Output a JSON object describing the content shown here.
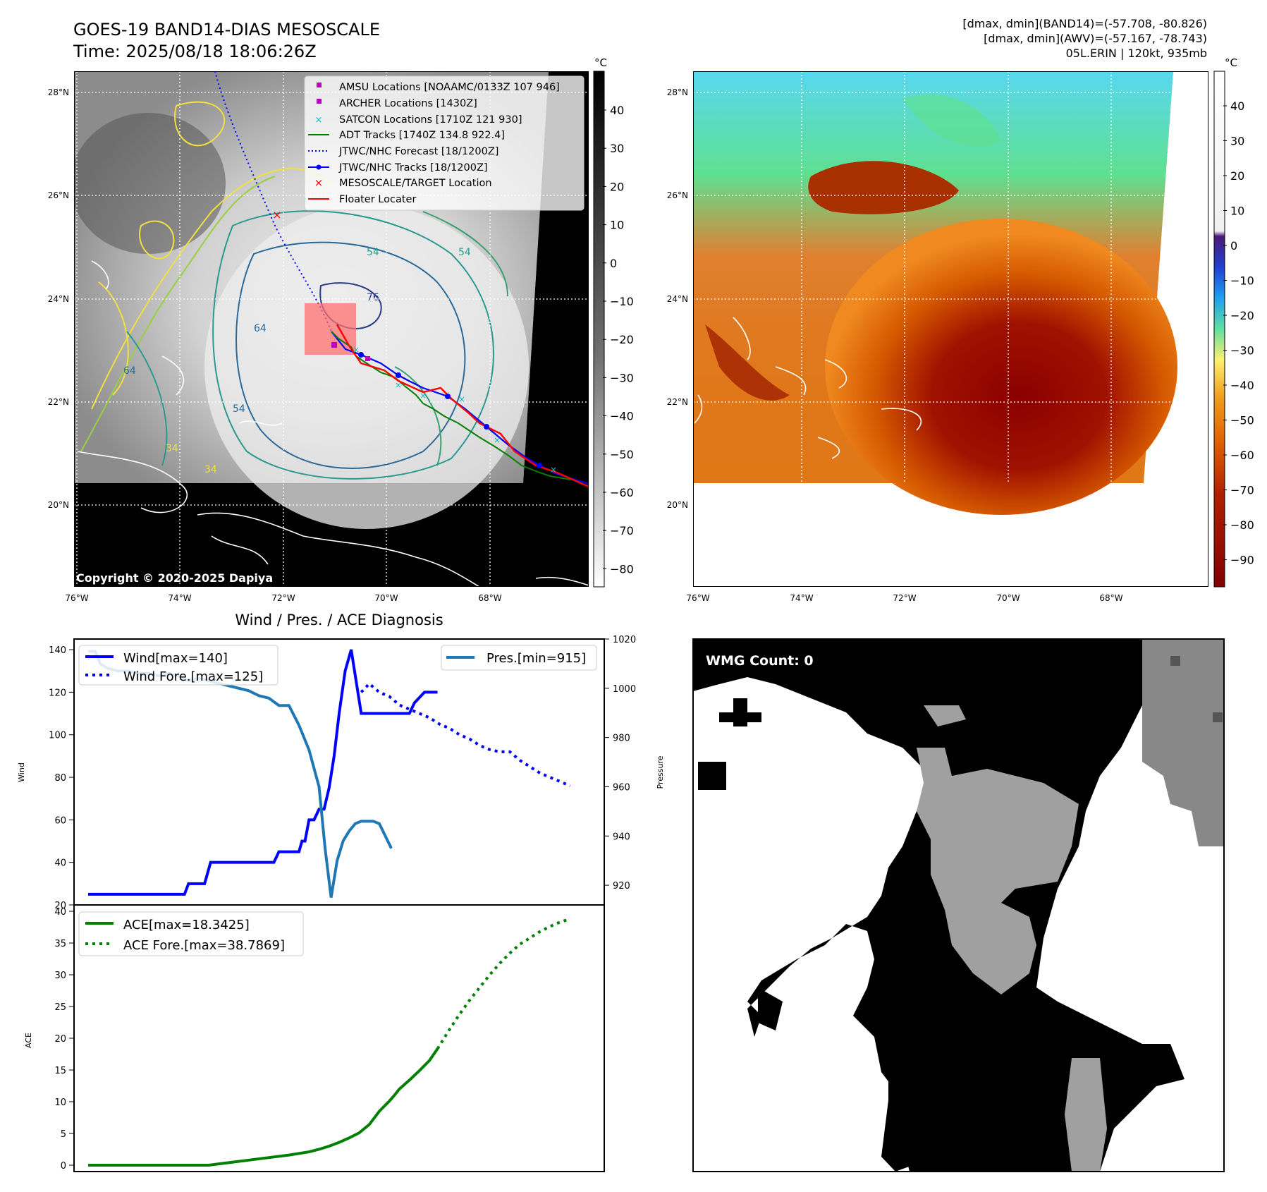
{
  "header": {
    "title": "GOES-19 BAND14-DIAS MESOSCALE",
    "time": "Time: 2025/08/18 18:06:26Z",
    "stats_band14": "[dmax, dmin](BAND14)=(-57.708, -80.826)",
    "stats_awv": "[dmax, dmin](AWV)=(-57.167, -78.743)",
    "storm": "05L.ERIN | 120kt, 935mb"
  },
  "map": {
    "lat_ticks": [
      "28°N",
      "26°N",
      "24°N",
      "22°N",
      "20°N"
    ],
    "lon_ticks": [
      "76°W",
      "74°W",
      "72°W",
      "70°W",
      "68°W"
    ],
    "copyright": "Copyright © 2020-2025 Dapiya",
    "contour_labels": [
      "54",
      "54",
      "64",
      "64",
      "76",
      "34",
      "34",
      "54"
    ],
    "legend": [
      {
        "label": "AMSU Locations [NOAAMC/0133Z 107 946]",
        "color": "#c000c0"
      },
      {
        "label": "ARCHER Locations [1430Z]",
        "color": "#c000c0"
      },
      {
        "label": "SATCON Locations [1710Z 121 930]",
        "color": "#00c0c0"
      },
      {
        "label": "ADT Tracks [1740Z 134.8 922.4]",
        "color": "#008000"
      },
      {
        "label": "JTWC/NHC Forecast [18/1200Z]",
        "color": "#0000ff"
      },
      {
        "label": "JTWC/NHC Tracks [18/1200Z]",
        "color": "#0000ff"
      },
      {
        "label": "MESOSCALE/TARGET Location",
        "color": "#ff0000"
      },
      {
        "label": "Floater Locater",
        "color": "#ff0000"
      }
    ]
  },
  "colorbar_gray": {
    "unit": "°C",
    "ticks": [
      "40",
      "30",
      "20",
      "10",
      "0",
      "−10",
      "−20",
      "−30",
      "−40",
      "−50",
      "−60",
      "−70",
      "−80"
    ]
  },
  "colorbar_color": {
    "unit": "°C",
    "ticks": [
      "40",
      "30",
      "20",
      "10",
      "0",
      "−10",
      "−20",
      "−30",
      "−40",
      "−50",
      "−60",
      "−70",
      "−80",
      "−90"
    ]
  },
  "wmg": {
    "label": "WMG Count: 0"
  },
  "diag": {
    "title": "Wind / Pres. / ACE Diagnosis"
  },
  "chart_data": [
    {
      "type": "line",
      "title": "Wind / Pres. / ACE Diagnosis",
      "ylabel": "Wind",
      "ylabel_right": "Pressure",
      "ylim": [
        20,
        145
      ],
      "ylim_right": [
        912,
        1020
      ],
      "yticks": [
        "20",
        "40",
        "60",
        "80",
        "100",
        "120",
        "140"
      ],
      "yticks_right": [
        "920",
        "940",
        "960",
        "980",
        "1000",
        "1020"
      ],
      "series": [
        {
          "name": "Wind[max=140]",
          "style": "solid",
          "color": "#0000ff",
          "x": [
            0,
            1,
            2,
            3,
            4,
            5,
            6,
            6.2,
            6.8,
            7.2,
            7.8,
            8.2,
            8.6,
            9.0,
            9.3,
            9.6,
            10.0,
            10.4,
            10.7,
            11.0,
            11.6,
            12.2,
            12.6,
            13.0,
            13.6,
            14.0,
            14.5,
            15.0,
            15.5,
            16.0,
            16.5,
            17.0,
            17.5,
            18.0,
            18.5,
            19.0,
            19.5,
            20.0,
            20.5,
            21.0,
            21.3,
            21.6,
            22.0,
            22.5,
            23.0,
            23.5,
            24.0,
            24.5,
            25.0,
            25.6,
            26.2,
            26.6,
            27.2,
            27.6,
            28.2,
            28.8,
            29.5,
            30.2,
            30.8,
            31.5,
            32.0,
            32.5,
            33.5,
            34.2,
            34.8
          ],
          "y": [
            25,
            25,
            25,
            25,
            25,
            25,
            25,
            25,
            25,
            25,
            25,
            25,
            25,
            25,
            25,
            25,
            30,
            30,
            30,
            30,
            30,
            40,
            40,
            40,
            40,
            40,
            40,
            40,
            40,
            40,
            40,
            40,
            40,
            40,
            40,
            45,
            45,
            45,
            45,
            45,
            50,
            50,
            60,
            60,
            65,
            65,
            75,
            90,
            110,
            130,
            140,
            128,
            110,
            110,
            110,
            110,
            110,
            110,
            110,
            110,
            110,
            115,
            120,
            120,
            120
          ],
          "label_max": "Wind[max=140]"
        },
        {
          "name": "Wind Fore.[max=125]",
          "style": "dotted",
          "color": "#0000ff",
          "x": [
            27.2,
            28.0,
            29.0,
            30.0,
            31.0,
            32.0,
            33.0,
            34.0,
            35.0,
            36.0,
            37.0,
            38.0,
            39.0,
            40.0,
            41.0,
            42.0,
            43.0,
            44.0,
            45.0,
            46.0,
            47.0,
            48.0
          ],
          "y": [
            120,
            124,
            120,
            118,
            114,
            112,
            110,
            108,
            105,
            103,
            100,
            98,
            95,
            93,
            92,
            92,
            88,
            85,
            82,
            80,
            78,
            76
          ]
        },
        {
          "name": "Pres.[min=915]",
          "style": "solid",
          "color": "#1f77b4",
          "axis": "right",
          "x": [
            0,
            0.7,
            1.2,
            2,
            3,
            4,
            5,
            6,
            7,
            8,
            9,
            10,
            11,
            12,
            13,
            14,
            15,
            16,
            17,
            18,
            19,
            20,
            21,
            22,
            23,
            23.6,
            24.2,
            24.8,
            25.4,
            26,
            26.6,
            27.2,
            27.8,
            28.4,
            29,
            29.6,
            30.2
          ],
          "y": [
            1015,
            1015,
            1010,
            1008,
            1007,
            1007,
            1006,
            1006,
            1005,
            1006,
            1005,
            1003,
            1004,
            1003,
            1002,
            1001,
            1000,
            999,
            997,
            996,
            993,
            993,
            985,
            975,
            960,
            935,
            915,
            930,
            938,
            942,
            945,
            946,
            946,
            946,
            945,
            940,
            935
          ]
        }
      ]
    },
    {
      "type": "line",
      "ylabel": "ACE",
      "ylim": [
        -1,
        41
      ],
      "yticks": [
        "0",
        "5",
        "10",
        "15",
        "20",
        "25",
        "30",
        "35",
        "40"
      ],
      "series": [
        {
          "name": "ACE[max=18.3425]",
          "style": "solid",
          "color": "#008000",
          "x": [
            0,
            2,
            4,
            6,
            8,
            10,
            12,
            14,
            16,
            18,
            20,
            22,
            23,
            24,
            25,
            26,
            27,
            28,
            29,
            30,
            30.5,
            31,
            32,
            33,
            34,
            34.8
          ],
          "y": [
            0,
            0,
            0,
            0,
            0,
            0,
            0,
            0.4,
            0.8,
            1.2,
            1.6,
            2.1,
            2.5,
            3,
            3.6,
            4.3,
            5.1,
            6.4,
            8.5,
            10.1,
            11.0,
            12.0,
            13.4,
            14.9,
            16.5,
            18.34
          ]
        },
        {
          "name": "ACE Fore.[max=38.7869]",
          "style": "dotted",
          "color": "#008000",
          "x": [
            34.8,
            36,
            37,
            38,
            39,
            40,
            41,
            42,
            43,
            44,
            45,
            46,
            47,
            48
          ],
          "y": [
            18.34,
            21.4,
            23.8,
            26.0,
            28.0,
            30.0,
            31.8,
            33.4,
            34.8,
            35.8,
            36.8,
            37.6,
            38.3,
            38.79
          ]
        }
      ]
    }
  ]
}
